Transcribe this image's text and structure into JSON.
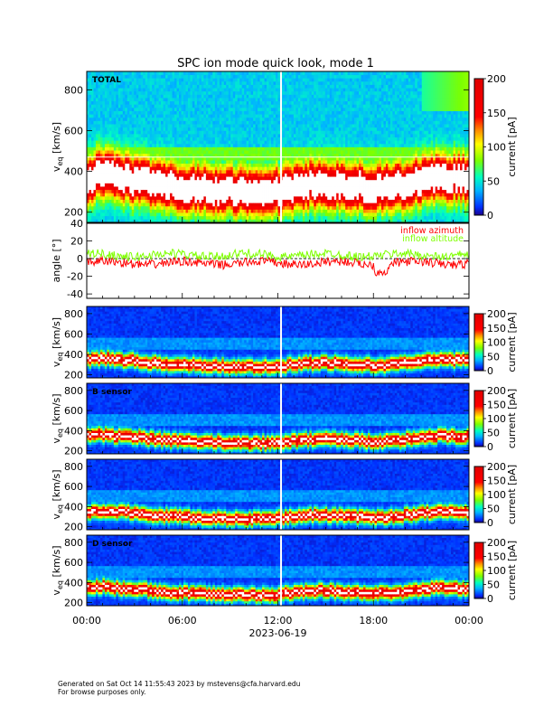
{
  "page_title": "SPC ion mode quick look, mode 1",
  "footer": {
    "generated": "Generated on Sat Oct 14 11:55:43 2023 by mstevens@cfa.harvard.edu",
    "note": "For browse purposes only."
  },
  "colors": {
    "azimuth": "#ff0000",
    "altitude": "#7fff00",
    "gap_line": "#ffffff"
  },
  "chart_data": [
    {
      "type": "heatmap",
      "panel_label": "TOTAL",
      "ylabel_main": "v",
      "ylabel_sub": "eq",
      "ylabel_unit": "[km/s]",
      "yticks": [
        "200",
        "400",
        "600",
        "800"
      ],
      "ylim": [
        150,
        890
      ],
      "colorbar": {
        "label": "current [pA]",
        "ticks": [
          "0",
          "50",
          "100",
          "150",
          "200"
        ],
        "range": [
          0,
          200
        ]
      },
      "peak_speed_kms": [
        [
          0,
          330
        ],
        [
          1,
          350
        ],
        [
          2,
          335
        ],
        [
          3,
          325
        ],
        [
          4,
          305
        ],
        [
          5,
          295
        ],
        [
          6,
          285
        ],
        [
          7,
          280
        ],
        [
          8,
          275
        ],
        [
          9,
          270
        ],
        [
          10,
          265
        ],
        [
          11,
          265
        ],
        [
          12,
          270
        ],
        [
          13,
          290
        ],
        [
          14,
          300
        ],
        [
          15,
          305
        ],
        [
          16,
          300
        ],
        [
          17,
          290
        ],
        [
          18,
          280
        ],
        [
          19,
          285
        ],
        [
          20,
          300
        ],
        [
          21,
          320
        ],
        [
          22,
          340
        ],
        [
          23,
          335
        ],
        [
          24,
          330
        ]
      ]
    },
    {
      "type": "line",
      "ylabel": "angle [°]",
      "yticks": [
        "-40",
        "-20",
        "0",
        "20",
        "40"
      ],
      "ylim": [
        -45,
        40
      ],
      "series": [
        {
          "name": "inflow azimuth",
          "mean_deg": -5,
          "spread_deg": 5
        },
        {
          "name": "inflow altitude",
          "mean_deg": 4,
          "spread_deg": 5
        }
      ]
    },
    {
      "type": "heatmap",
      "panel_label": "",
      "ylabel_main": "v",
      "ylabel_sub": "eq",
      "ylabel_unit": "[km/s]",
      "yticks": [
        "200",
        "400",
        "600",
        "800"
      ],
      "ylim": [
        170,
        870
      ],
      "colorbar": {
        "label": "current [pA]",
        "ticks": [
          "0",
          "50",
          "100",
          "150",
          "200"
        ],
        "range": [
          0,
          200
        ]
      }
    },
    {
      "type": "heatmap",
      "panel_label": "B sensor",
      "ylabel_main": "v",
      "ylabel_sub": "eq",
      "ylabel_unit": "[km/s]",
      "yticks": [
        "200",
        "400",
        "600",
        "800"
      ],
      "ylim": [
        170,
        870
      ],
      "colorbar": {
        "label": "current [pA]",
        "ticks": [
          "0",
          "50",
          "100",
          "150",
          "200"
        ],
        "range": [
          0,
          200
        ]
      }
    },
    {
      "type": "heatmap",
      "panel_label": "",
      "ylabel_main": "v",
      "ylabel_sub": "eq",
      "ylabel_unit": "[km/s]",
      "yticks": [
        "200",
        "400",
        "600",
        "800"
      ],
      "ylim": [
        170,
        870
      ],
      "colorbar": {
        "label": "current [pA]",
        "ticks": [
          "0",
          "50",
          "100",
          "150",
          "200"
        ],
        "range": [
          0,
          200
        ]
      }
    },
    {
      "type": "heatmap",
      "panel_label": "D sensor",
      "ylabel_main": "v",
      "ylabel_sub": "eq",
      "ylabel_unit": "[km/s]",
      "yticks": [
        "200",
        "400",
        "600",
        "800"
      ],
      "ylim": [
        170,
        870
      ],
      "colorbar": {
        "label": "current [pA]",
        "ticks": [
          "0",
          "50",
          "100",
          "150",
          "200"
        ],
        "range": [
          0,
          200
        ]
      }
    }
  ],
  "x_axis": {
    "ticks": [
      "00:00",
      "06:00",
      "12:00",
      "18:00",
      "00:00"
    ],
    "xlim_hours": [
      0,
      24
    ],
    "date_label": "2023-06-19",
    "data_gap_hour": 12.2
  }
}
